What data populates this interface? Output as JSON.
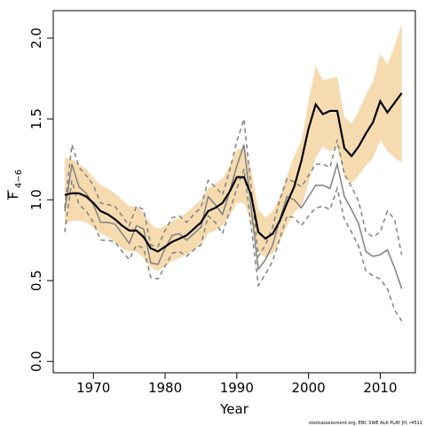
{
  "chart_data": {
    "type": "line",
    "xlabel": "Year",
    "ylabel": {
      "main": "F",
      "sub": "4−6"
    },
    "footnote": "stockassessment.org, EBC SWE ALK PLAY JH, r4511",
    "xlim": [
      1964.4,
      2014.9
    ],
    "ylim": [
      -0.07,
      2.17
    ],
    "xticks": [
      1970,
      1980,
      1990,
      2000,
      2010
    ],
    "yticks": [
      {
        "value": 0,
        "label": "0.0"
      },
      {
        "value": 0.5,
        "label": "0.5"
      },
      {
        "value": 1,
        "label": "1.0"
      },
      {
        "value": 1.5,
        "label": "1.5"
      },
      {
        "value": 2,
        "label": "2.0"
      }
    ],
    "x": [
      1966,
      1967,
      1968,
      1969,
      1970,
      1971,
      1972,
      1973,
      1974,
      1975,
      1976,
      1977,
      1978,
      1979,
      1980,
      1981,
      1982,
      1983,
      1984,
      1985,
      1986,
      1987,
      1988,
      1989,
      1990,
      1991,
      1992,
      1993,
      1994,
      1995,
      1996,
      1997,
      1998,
      1999,
      2000,
      2001,
      2002,
      2003,
      2004,
      2005,
      2006,
      2007,
      2008,
      2009,
      2010,
      2011,
      2012,
      2013
    ],
    "band": {
      "color": "#f6dbb0",
      "upper": [
        1.26,
        1.25,
        1.22,
        1.19,
        1.14,
        1.09,
        1.07,
        1.04,
        1.0,
        0.96,
        0.96,
        0.92,
        0.85,
        0.82,
        0.84,
        0.87,
        0.89,
        0.92,
        0.96,
        1.0,
        1.07,
        1.1,
        1.13,
        1.21,
        1.31,
        1.32,
        1.19,
        0.94,
        0.89,
        0.93,
        1.02,
        1.15,
        1.27,
        1.36,
        1.61,
        1.83,
        1.74,
        1.75,
        1.76,
        1.51,
        1.47,
        1.55,
        1.65,
        1.73,
        1.9,
        1.84,
        1.95,
        2.09
      ],
      "lower": [
        0.85,
        0.87,
        0.87,
        0.86,
        0.83,
        0.79,
        0.77,
        0.74,
        0.7,
        0.68,
        0.68,
        0.64,
        0.58,
        0.56,
        0.59,
        0.62,
        0.64,
        0.66,
        0.69,
        0.72,
        0.79,
        0.81,
        0.84,
        0.9,
        0.98,
        0.98,
        0.87,
        0.68,
        0.64,
        0.67,
        0.74,
        0.84,
        0.92,
        0.96,
        1.1,
        1.26,
        1.33,
        1.3,
        1.32,
        1.14,
        1.1,
        1.15,
        1.21,
        1.26,
        1.37,
        1.3,
        1.26,
        1.23
      ]
    },
    "series": [
      {
        "color": "#808080",
        "dash": true,
        "values": [
          0.95,
          1.34,
          1.2,
          1.15,
          1.09,
          0.98,
          0.97,
          0.96,
          0.9,
          0.84,
          0.96,
          0.94,
          0.72,
          0.71,
          0.81,
          0.89,
          0.9,
          0.86,
          0.91,
          0.95,
          1.12,
          1.08,
          1.03,
          1.18,
          1.36,
          1.5,
          1.07,
          0.65,
          0.72,
          0.83,
          1.0,
          1.13,
          1.11,
          1.08,
          1.15,
          1.22,
          1.22,
          1.2,
          1.37,
          1.16,
          1.08,
          0.99,
          0.8,
          0.77,
          0.8,
          0.93,
          0.88,
          0.66
        ]
      },
      {
        "color": "#808080",
        "dash": true,
        "values": [
          0.8,
          1.12,
          0.97,
          0.93,
          0.86,
          0.75,
          0.75,
          0.74,
          0.68,
          0.63,
          0.72,
          0.7,
          0.52,
          0.51,
          0.59,
          0.67,
          0.68,
          0.65,
          0.69,
          0.72,
          0.9,
          0.86,
          0.79,
          0.93,
          1.07,
          1.19,
          0.84,
          0.47,
          0.54,
          0.62,
          0.76,
          0.9,
          0.89,
          0.84,
          0.9,
          0.95,
          0.96,
          0.94,
          1.07,
          0.88,
          0.8,
          0.71,
          0.56,
          0.53,
          0.51,
          0.45,
          0.32,
          0.25
        ]
      },
      {
        "color": "#808080",
        "dash": false,
        "values": [
          0.93,
          1.22,
          1.08,
          1.04,
          0.97,
          0.86,
          0.86,
          0.85,
          0.79,
          0.73,
          0.84,
          0.82,
          0.61,
          0.6,
          0.7,
          0.78,
          0.79,
          0.75,
          0.79,
          0.83,
          1.02,
          0.97,
          0.91,
          1.05,
          1.21,
          1.34,
          0.95,
          0.57,
          0.63,
          0.72,
          0.88,
          1.02,
          1.0,
          0.95,
          1.02,
          1.09,
          1.09,
          1.07,
          1.22,
          1.02,
          0.94,
          0.85,
          0.68,
          0.65,
          0.66,
          0.69,
          0.58,
          0.45
        ]
      },
      {
        "color": "#000000",
        "dash": false,
        "values": [
          1.03,
          1.04,
          1.04,
          1.02,
          0.98,
          0.93,
          0.91,
          0.88,
          0.84,
          0.81,
          0.81,
          0.77,
          0.7,
          0.68,
          0.71,
          0.74,
          0.76,
          0.78,
          0.82,
          0.86,
          0.93,
          0.95,
          0.98,
          1.05,
          1.14,
          1.14,
          1.03,
          0.8,
          0.76,
          0.79,
          0.87,
          0.98,
          1.08,
          1.24,
          1.44,
          1.59,
          1.53,
          1.55,
          1.55,
          1.32,
          1.27,
          1.33,
          1.41,
          1.48,
          1.61,
          1.54,
          1.6,
          1.66
        ]
      }
    ]
  }
}
